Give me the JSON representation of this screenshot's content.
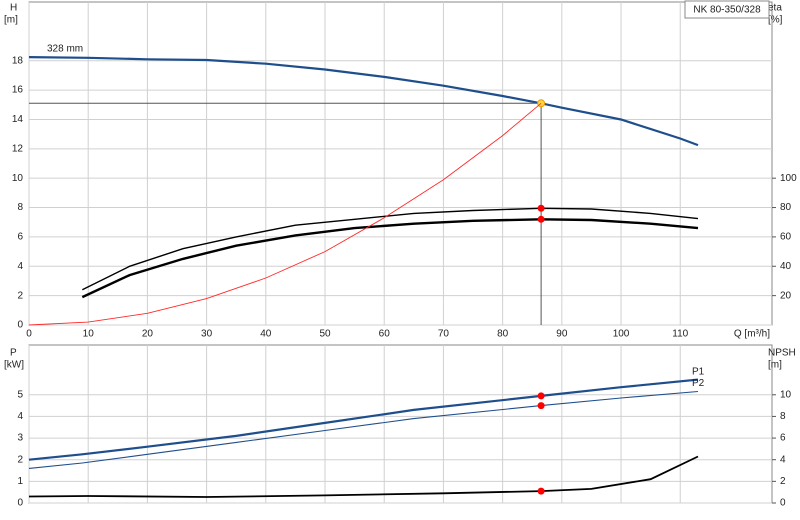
{
  "chart_data": [
    {
      "type": "line",
      "title": "NK 80-350/328",
      "ylabel": "H",
      "yunit": "[m]",
      "y2label": "eta",
      "y2unit": "[%]",
      "xlabel": "Q [m³/h]",
      "xlim": [
        0,
        125.5
      ],
      "xticks": [
        0,
        10,
        20,
        30,
        40,
        50,
        60,
        70,
        80,
        90,
        100,
        110
      ],
      "show_xtick_labels": true,
      "ylim": [
        0,
        22
      ],
      "yticks": [
        0,
        2,
        4,
        6,
        8,
        10,
        12,
        14,
        16,
        18
      ],
      "y2lim": [
        0,
        220
      ],
      "y2ticks": [
        20,
        40,
        60,
        80,
        100
      ],
      "grid": true,
      "highlight_x": 86.5,
      "duty_point": {
        "x": 86.5,
        "y": 15.1
      },
      "series": [
        {
          "name": "328 mm",
          "name_position": "start",
          "color": "#1f4e8c",
          "width": 2.2,
          "axis": "y",
          "highlight_color": "#ffd24a",
          "x": [
            0,
            10,
            20,
            30,
            40,
            50,
            60,
            70,
            80,
            86.5,
            90,
            100,
            110,
            113
          ],
          "values": [
            18.25,
            18.2,
            18.1,
            18.05,
            17.8,
            17.4,
            16.9,
            16.3,
            15.6,
            15.1,
            14.8,
            14.0,
            12.7,
            12.25
          ]
        },
        {
          "color": "#000000",
          "width": 1.4,
          "axis": "y2",
          "highlight_color": "#ff0000",
          "x": [
            9,
            17,
            26,
            35,
            45,
            55,
            65,
            75,
            86.5,
            95,
            105,
            113
          ],
          "values": [
            24,
            40,
            52,
            60,
            68,
            72,
            76,
            78,
            79.5,
            79,
            76,
            72.5
          ]
        },
        {
          "color": "#000000",
          "width": 2.4,
          "axis": "y2",
          "highlight_color": "#ff0000",
          "x": [
            9,
            17,
            26,
            35,
            45,
            55,
            65,
            75,
            86.5,
            95,
            105,
            113
          ],
          "values": [
            19,
            34,
            45,
            54,
            61,
            66,
            69,
            71,
            72,
            71.5,
            69,
            66
          ]
        },
        {
          "color": "#ff2a2a",
          "width": 0.9,
          "axis": "y",
          "x": [
            0,
            10,
            20,
            30,
            40,
            50,
            60,
            70,
            80,
            86.5
          ],
          "values": [
            0,
            0.2,
            0.8,
            1.8,
            3.2,
            5.0,
            7.3,
            9.9,
            12.9,
            15.1
          ]
        }
      ]
    },
    {
      "type": "line",
      "ylabel": "P",
      "yunit": "[kW]",
      "y2label": "NPSH",
      "y2unit": "[m]",
      "xlim": [
        0,
        125.5
      ],
      "xticks": [
        0,
        10,
        20,
        30,
        40,
        50,
        60,
        70,
        80,
        90,
        100,
        110
      ],
      "show_xtick_labels": false,
      "ylim": [
        0,
        7.3
      ],
      "yticks": [
        0,
        1,
        2,
        3,
        4,
        5
      ],
      "y2lim": [
        0,
        14.6
      ],
      "y2ticks": [
        0,
        2,
        4,
        6,
        8,
        10
      ],
      "grid": true,
      "highlight_x": 86.5,
      "series": [
        {
          "name": "P1",
          "name_position": "end",
          "color": "#1f4e8c",
          "width": 2.2,
          "axis": "y",
          "highlight_color": "#ff0000",
          "x": [
            0,
            9,
            20,
            35,
            50,
            65,
            86.5,
            100,
            113
          ],
          "values": [
            2.0,
            2.25,
            2.6,
            3.1,
            3.7,
            4.3,
            4.95,
            5.35,
            5.7
          ]
        },
        {
          "name": "P2",
          "name_position": "end",
          "color": "#1f4e8c",
          "width": 1.1,
          "axis": "y",
          "highlight_color": "#ff0000",
          "x": [
            0,
            9,
            20,
            35,
            50,
            65,
            86.5,
            100,
            113
          ],
          "values": [
            1.6,
            1.85,
            2.25,
            2.8,
            3.35,
            3.9,
            4.5,
            4.85,
            5.15
          ]
        },
        {
          "color": "#000000",
          "width": 1.8,
          "axis": "y2",
          "highlight_color": "#ff0000",
          "x": [
            0,
            10,
            30,
            50,
            70,
            86.5,
            95,
            105,
            113
          ],
          "values": [
            0.6,
            0.65,
            0.55,
            0.7,
            0.9,
            1.1,
            1.3,
            2.2,
            4.3
          ]
        }
      ]
    }
  ]
}
